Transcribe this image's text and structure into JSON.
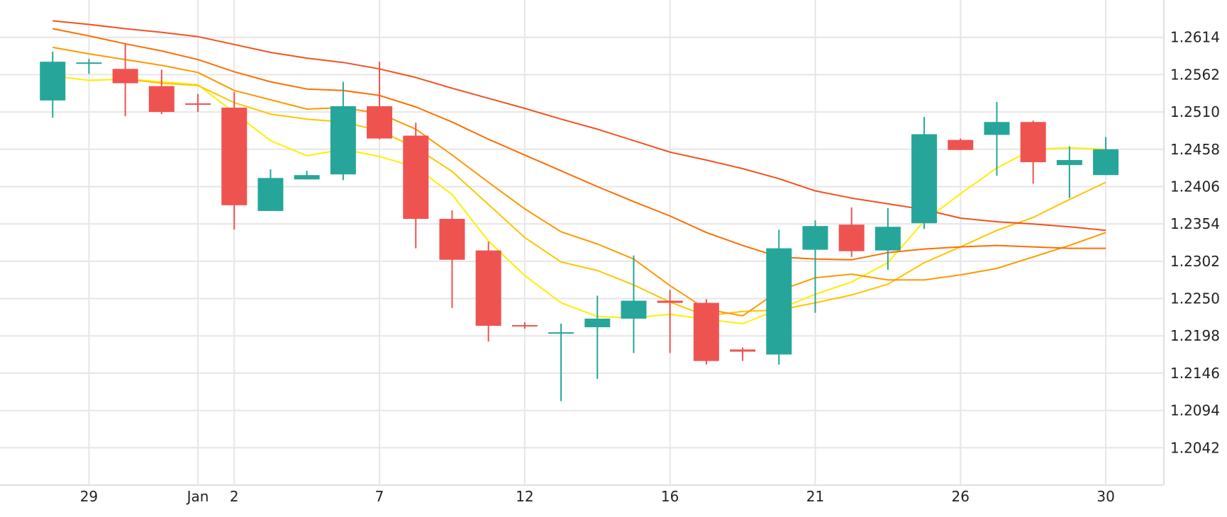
{
  "colors": {
    "up": "#26a69a",
    "down": "#ef5350",
    "ma_lines": [
      "#ffee00",
      "#ffc400",
      "#ff9800",
      "#ff6d00",
      "#f4511e"
    ]
  },
  "chart_data": {
    "type": "candlestick",
    "grid": true,
    "y_axis": {
      "ticks": [
        "1.2614",
        "1.2562",
        "1.2510",
        "1.2458",
        "1.2406",
        "1.2354",
        "1.2302",
        "1.2250",
        "1.2198",
        "1.2146",
        "1.2094",
        "1.2042"
      ],
      "range": [
        1.199,
        1.2666
      ],
      "position": "right"
    },
    "x_axis": {
      "ticks": [
        {
          "index": 1,
          "label": "29"
        },
        {
          "index": 4,
          "label": "Jan"
        },
        {
          "index": 5,
          "label": "2"
        },
        {
          "index": 9,
          "label": "7"
        },
        {
          "index": 13,
          "label": "12"
        },
        {
          "index": 17,
          "label": "16"
        },
        {
          "index": 21,
          "label": "21"
        },
        {
          "index": 25,
          "label": "26"
        },
        {
          "index": 29,
          "label": "30"
        }
      ],
      "range": [
        -1.45,
        30.6
      ]
    },
    "candles": [
      {
        "o": 1.2526,
        "h": 1.2594,
        "l": 1.2502,
        "c": 1.258
      },
      {
        "o": 1.2577,
        "h": 1.2584,
        "l": 1.2563,
        "c": 1.2579
      },
      {
        "o": 1.257,
        "h": 1.2605,
        "l": 1.2504,
        "c": 1.255
      },
      {
        "o": 1.2546,
        "h": 1.2569,
        "l": 1.2507,
        "c": 1.251
      },
      {
        "o": 1.2522,
        "h": 1.2535,
        "l": 1.251,
        "c": 1.252
      },
      {
        "o": 1.2516,
        "h": 1.2538,
        "l": 1.2346,
        "c": 1.238
      },
      {
        "o": 1.2372,
        "h": 1.243,
        "l": 1.2372,
        "c": 1.2418
      },
      {
        "o": 1.2416,
        "h": 1.2428,
        "l": 1.2416,
        "c": 1.2422
      },
      {
        "o": 1.2423,
        "h": 1.2552,
        "l": 1.2415,
        "c": 1.2518
      },
      {
        "o": 1.2518,
        "h": 1.258,
        "l": 1.2472,
        "c": 1.2473
      },
      {
        "o": 1.2477,
        "h": 1.2495,
        "l": 1.232,
        "c": 1.2361
      },
      {
        "o": 1.2361,
        "h": 1.2373,
        "l": 1.2237,
        "c": 1.2304
      },
      {
        "o": 1.2317,
        "h": 1.2329,
        "l": 1.219,
        "c": 1.2212
      },
      {
        "o": 1.2213,
        "h": 1.2217,
        "l": 1.2208,
        "c": 1.2211
      },
      {
        "o": 1.2201,
        "h": 1.2215,
        "l": 1.2107,
        "c": 1.2203
      },
      {
        "o": 1.221,
        "h": 1.2254,
        "l": 1.2138,
        "c": 1.2222
      },
      {
        "o": 1.2222,
        "h": 1.231,
        "l": 1.2174,
        "c": 1.2247
      },
      {
        "o": 1.2247,
        "h": 1.2262,
        "l": 1.2174,
        "c": 1.2244
      },
      {
        "o": 1.2244,
        "h": 1.2249,
        "l": 1.2158,
        "c": 1.2163
      },
      {
        "o": 1.2179,
        "h": 1.2182,
        "l": 1.2163,
        "c": 1.2176
      },
      {
        "o": 1.2172,
        "h": 1.2346,
        "l": 1.2158,
        "c": 1.232
      },
      {
        "o": 1.2318,
        "h": 1.2359,
        "l": 1.223,
        "c": 1.2351
      },
      {
        "o": 1.2353,
        "h": 1.2377,
        "l": 1.2308,
        "c": 1.2316
      },
      {
        "o": 1.2317,
        "h": 1.2376,
        "l": 1.229,
        "c": 1.235
      },
      {
        "o": 1.2355,
        "h": 1.2503,
        "l": 1.2347,
        "c": 1.2479
      },
      {
        "o": 1.2471,
        "h": 1.2473,
        "l": 1.2457,
        "c": 1.2457
      },
      {
        "o": 1.2478,
        "h": 1.2524,
        "l": 1.2421,
        "c": 1.2496
      },
      {
        "o": 1.2496,
        "h": 1.2498,
        "l": 1.241,
        "c": 1.244
      },
      {
        "o": 1.2436,
        "h": 1.2462,
        "l": 1.239,
        "c": 1.2443
      },
      {
        "o": 1.2422,
        "h": 1.2475,
        "l": 1.2422,
        "c": 1.2458
      }
    ],
    "moving_averages": [
      {
        "color_index": 0,
        "values": [
          1.256,
          1.2554,
          1.2556,
          1.2552,
          1.2548,
          1.2509,
          1.247,
          1.2449,
          1.2458,
          1.2448,
          1.2433,
          1.2395,
          1.233,
          1.2282,
          1.2244,
          1.2225,
          1.2223,
          1.2228,
          1.2221,
          1.2215,
          1.2235,
          1.2256,
          1.2273,
          1.23,
          1.2358,
          1.2396,
          1.2432,
          1.2458,
          1.246,
          1.2458
        ]
      },
      {
        "color_index": 1,
        "values": [
          null,
          null,
          1.2556,
          1.255,
          1.2547,
          1.2523,
          1.2507,
          1.25,
          1.2496,
          1.2484,
          1.246,
          1.2427,
          1.2381,
          1.2335,
          1.2301,
          1.2289,
          1.2269,
          1.2245,
          1.2226,
          1.2232,
          1.2234,
          1.2244,
          1.2255,
          1.227,
          1.23,
          1.2322,
          1.2345,
          1.2363,
          1.2388,
          1.2412
        ]
      },
      {
        "color_index": 2,
        "values": [
          1.26,
          1.2591,
          1.2583,
          1.2575,
          1.2565,
          1.254,
          1.2527,
          1.2514,
          1.2516,
          1.2508,
          1.2486,
          1.245,
          1.2412,
          1.2375,
          1.2343,
          1.2326,
          1.2305,
          1.2268,
          1.2235,
          1.2226,
          1.2261,
          1.2279,
          1.2284,
          1.2276,
          1.2276,
          1.2283,
          1.2292,
          1.2308,
          1.2324,
          1.2342
        ]
      },
      {
        "color_index": 3,
        "values": [
          1.2626,
          1.2616,
          1.2605,
          1.2595,
          1.2583,
          1.2566,
          1.2552,
          1.2542,
          1.254,
          1.2533,
          1.2517,
          1.2496,
          1.2472,
          1.245,
          1.2428,
          1.2406,
          1.2385,
          1.2365,
          1.2342,
          1.2324,
          1.2308,
          1.2305,
          1.2304,
          1.2314,
          1.2319,
          1.2322,
          1.2324,
          1.2322,
          1.232,
          1.232
        ]
      },
      {
        "color_index": 4,
        "values": [
          1.2637,
          1.2632,
          1.2626,
          1.2621,
          1.2615,
          1.2604,
          1.2593,
          1.2585,
          1.2579,
          1.257,
          1.2558,
          1.2543,
          1.2529,
          1.2515,
          1.25,
          1.2486,
          1.247,
          1.2454,
          1.2443,
          1.2431,
          1.2417,
          1.24,
          1.239,
          1.2382,
          1.2374,
          1.2362,
          1.2357,
          1.2354,
          1.235,
          1.2345
        ]
      }
    ]
  }
}
